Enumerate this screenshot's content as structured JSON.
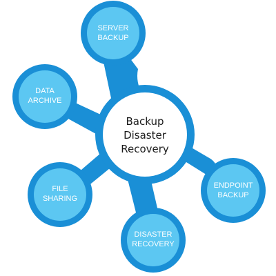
{
  "center": {
    "lines": [
      "Backup",
      "Disaster",
      "Recovery"
    ]
  },
  "satellites": [
    {
      "id": "server-backup",
      "lines": [
        "SERVER",
        "BACKUP"
      ]
    },
    {
      "id": "data-archive",
      "lines": [
        "DATA",
        "ARCHIVE"
      ]
    },
    {
      "id": "file-sharing",
      "lines": [
        "FILE",
        "SHARING"
      ]
    },
    {
      "id": "disaster-recovery",
      "lines": [
        "DISASTER",
        "RECOVERY"
      ]
    },
    {
      "id": "endpoint-backup",
      "lines": [
        "ENDPOINT",
        "BACKUP"
      ]
    }
  ],
  "colors": {
    "ring": "#1a8fd6",
    "node_fill": "#5cc7f2",
    "center_fill": "#ffffff",
    "center_text": "#1a1a1a",
    "label_text": "#ffffff"
  }
}
